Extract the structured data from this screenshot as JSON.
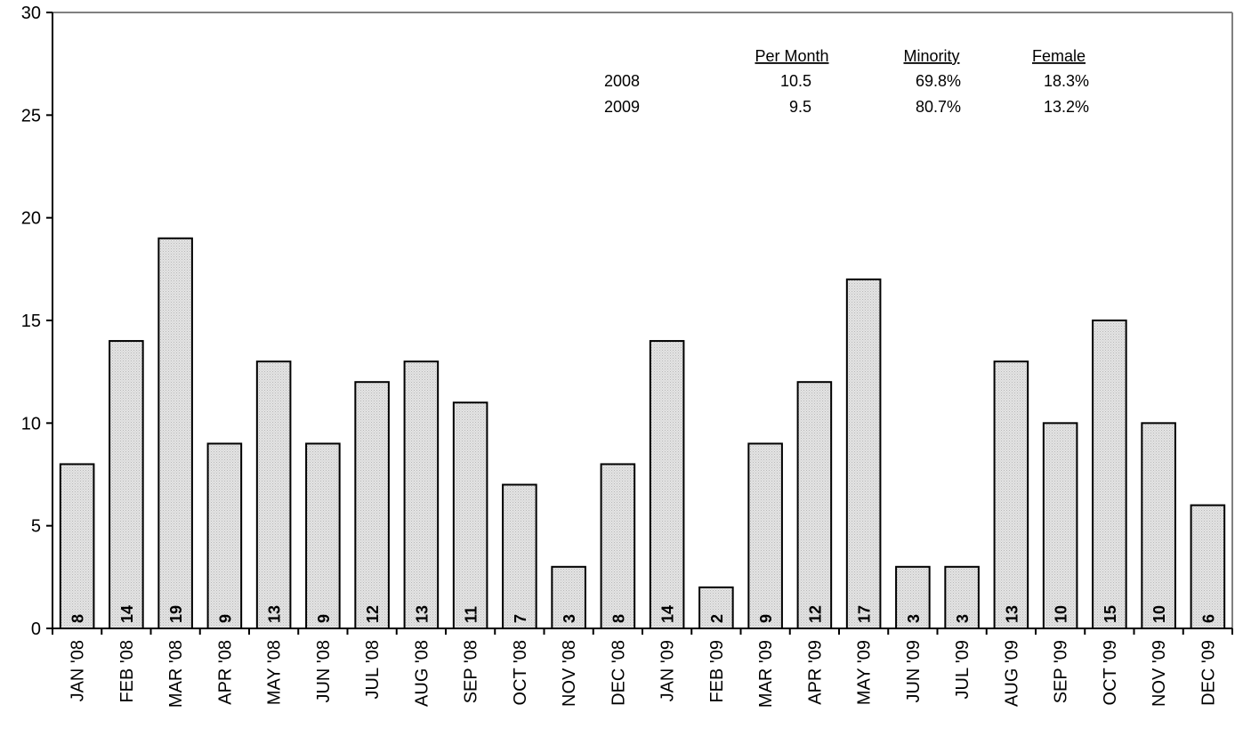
{
  "chart_data": {
    "type": "bar",
    "categories": [
      "JAN '08",
      "FEB '08",
      "MAR '08",
      "APR '08",
      "MAY '08",
      "JUN '08",
      "JUL '08",
      "AUG '08",
      "SEP '08",
      "OCT '08",
      "NOV '08",
      "DEC '08",
      "JAN '09",
      "FEB '09",
      "MAR '09",
      "APR '09",
      "MAY '09",
      "JUN '09",
      "JUL '09",
      "AUG '09",
      "SEP '09",
      "OCT '09",
      "NOV '09",
      "DEC '09"
    ],
    "values": [
      8,
      14,
      19,
      9,
      13,
      9,
      12,
      13,
      11,
      7,
      3,
      8,
      14,
      2,
      9,
      12,
      17,
      3,
      3,
      13,
      10,
      15,
      10,
      6
    ],
    "ylim": [
      0,
      30
    ],
    "yticks": [
      0,
      5,
      10,
      15,
      20,
      25,
      30
    ],
    "grid": false,
    "data_labels": "inside-bottom-rotated",
    "bar_color": "#d9d9d9",
    "summary_table": {
      "headers": [
        "Per Month",
        "Minority",
        "Female"
      ],
      "rows": [
        {
          "year": "2008",
          "cells": [
            "10.5",
            "69.8%",
            "18.3%"
          ]
        },
        {
          "year": "2009",
          "cells": [
            "9.5",
            "80.7%",
            "13.2%"
          ]
        }
      ]
    }
  }
}
